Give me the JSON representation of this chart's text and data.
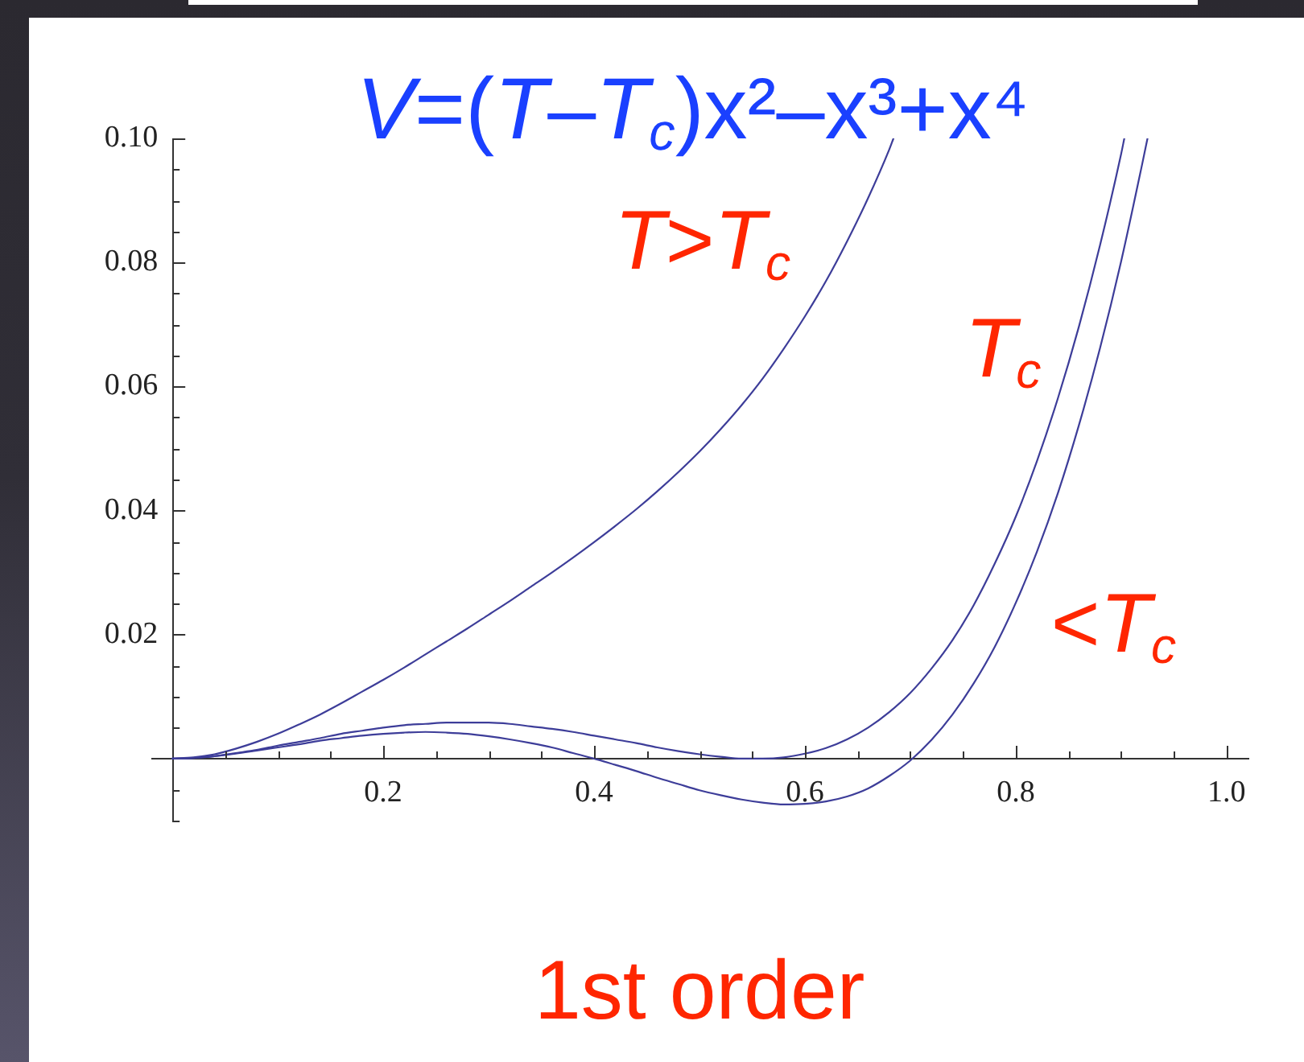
{
  "chart_data": {
    "type": "line",
    "title": "V=(T–T$_{c}$)x²–x³+x⁴",
    "annotations": [
      "1st order"
    ],
    "xlim": [
      -0.02,
      1.02
    ],
    "xticks": [
      {
        "value": 0.05,
        "label": null
      },
      {
        "value": 0.1,
        "label": null
      },
      {
        "value": 0.15,
        "label": null
      },
      0.2,
      {
        "value": 0.25,
        "label": null
      },
      {
        "value": 0.3,
        "label": null
      },
      {
        "value": 0.35,
        "label": null
      },
      0.4,
      {
        "value": 0.45,
        "label": null
      },
      {
        "value": 0.5,
        "label": null
      },
      {
        "value": 0.55,
        "label": null
      },
      0.6,
      {
        "value": 0.65,
        "label": null
      },
      {
        "value": 0.7,
        "label": null
      },
      {
        "value": 0.75,
        "label": null
      },
      0.8,
      {
        "value": 0.85,
        "label": null
      },
      {
        "value": 0.9,
        "label": null
      },
      {
        "value": 0.95,
        "label": null
      },
      {
        "value": 1,
        "label": "1.0"
      }
    ],
    "ylim": [
      -0.01,
      0.1
    ],
    "yticks": [
      {
        "value": -0.01,
        "label": null
      },
      {
        "value": -0.005,
        "label": null
      },
      {
        "value": 0.005,
        "label": null
      },
      {
        "value": 0.01,
        "label": null
      },
      {
        "value": 0.015,
        "label": null
      },
      0.02,
      {
        "value": 0.025,
        "label": null
      },
      {
        "value": 0.03,
        "label": null
      },
      {
        "value": 0.035,
        "label": null
      },
      0.04,
      {
        "value": 0.045,
        "label": null
      },
      {
        "value": 0.05,
        "label": null
      },
      {
        "value": 0.055,
        "label": null
      },
      0.06,
      {
        "value": 0.065,
        "label": null
      },
      {
        "value": 0.07,
        "label": null
      },
      {
        "value": 0.075,
        "label": null
      },
      0.08,
      {
        "value": 0.085,
        "label": null
      },
      {
        "value": 0.09,
        "label": null
      },
      {
        "value": 0.095,
        "label": null
      },
      {
        "value": 0.1,
        "label": "0.10"
      }
    ],
    "series": [
      {
        "name": "T>T$_{c}$",
        "color": "#3d3d99",
        "x": [
          0,
          0.02,
          0.04,
          0.06,
          0.08,
          0.1,
          0.12,
          0.14,
          0.16,
          0.18,
          0.2,
          0.22,
          0.24,
          0.26,
          0.28,
          0.3,
          0.32,
          0.34,
          0.36,
          0.38,
          0.4,
          0.42,
          0.44,
          0.46,
          0.48,
          0.5,
          0.52,
          0.54,
          0.56,
          0.58,
          0.6,
          0.62,
          0.64,
          0.66,
          0.68,
          0.684
        ],
        "values": [
          0,
          0.0002,
          0.0007,
          0.0016,
          0.0027,
          0.004,
          0.0055,
          0.0071,
          0.0089,
          0.0108,
          0.0127,
          0.0147,
          0.0168,
          0.0189,
          0.021,
          0.0232,
          0.0254,
          0.0277,
          0.03,
          0.0324,
          0.0349,
          0.0375,
          0.0402,
          0.0431,
          0.0462,
          0.0495,
          0.0531,
          0.057,
          0.0613,
          0.0661,
          0.0713,
          0.077,
          0.0834,
          0.0904,
          0.0982,
          0.1
        ]
      },
      {
        "name": "T$_{c}$",
        "color": "#3d3d99",
        "x": [
          0,
          0.02,
          0.04,
          0.06,
          0.08,
          0.1,
          0.12,
          0.14,
          0.16,
          0.18,
          0.2,
          0.22,
          0.24,
          0.26,
          0.28,
          0.3,
          0.32,
          0.34,
          0.36,
          0.38,
          0.4,
          0.42,
          0.44,
          0.46,
          0.48,
          0.5,
          0.52,
          0.54,
          0.56,
          0.58,
          0.6,
          0.62,
          0.64,
          0.66,
          0.68,
          0.7,
          0.72,
          0.74,
          0.76,
          0.78,
          0.8,
          0.82,
          0.84,
          0.86,
          0.88,
          0.9,
          0.903
        ],
        "values": [
          0,
          0.0001,
          0.0004,
          0.0009,
          0.0014,
          0.0021,
          0.0027,
          0.0033,
          0.004,
          0.0045,
          0.005,
          0.0054,
          0.0056,
          0.0058,
          0.0058,
          0.0058,
          0.0056,
          0.0052,
          0.0048,
          0.0043,
          0.0037,
          0.0031,
          0.0025,
          0.0018,
          0.0012,
          0.0007,
          0.0003,
          0,
          0,
          0.0002,
          0.0008,
          0.0017,
          0.0031,
          0.005,
          0.0075,
          0.0106,
          0.0145,
          0.0191,
          0.0247,
          0.0314,
          0.039,
          0.0479,
          0.0581,
          0.0697,
          0.0828,
          0.0975,
          0.1
        ]
      },
      {
        "name": "<T$_{c}$",
        "color": "#3d3d99",
        "x": [
          0,
          0.02,
          0.04,
          0.06,
          0.08,
          0.1,
          0.12,
          0.14,
          0.16,
          0.18,
          0.2,
          0.22,
          0.24,
          0.26,
          0.28,
          0.3,
          0.32,
          0.34,
          0.36,
          0.38,
          0.4,
          0.42,
          0.44,
          0.46,
          0.48,
          0.5,
          0.52,
          0.54,
          0.56,
          0.58,
          0.6,
          0.62,
          0.64,
          0.66,
          0.68,
          0.7,
          0.72,
          0.74,
          0.76,
          0.78,
          0.8,
          0.82,
          0.84,
          0.86,
          0.88,
          0.9,
          0.92,
          0.925
        ],
        "values": [
          0,
          0.0001,
          0.0004,
          0.0008,
          0.0013,
          0.0018,
          0.0023,
          0.0029,
          0.0033,
          0.0037,
          0.004,
          0.0042,
          0.0043,
          0.0042,
          0.004,
          0.0036,
          0.0031,
          0.0025,
          0.0018,
          0.0009,
          0,
          -0.001,
          -0.002,
          -0.0031,
          -0.0041,
          -0.0051,
          -0.0059,
          -0.0066,
          -0.0071,
          -0.0074,
          -0.0073,
          -0.0069,
          -0.0061,
          -0.0048,
          -0.0028,
          -0.0003,
          0.003,
          0.0071,
          0.0121,
          0.018,
          0.0251,
          0.0333,
          0.0428,
          0.0538,
          0.0662,
          0.0802,
          0.0959,
          0.1
        ]
      }
    ]
  }
}
